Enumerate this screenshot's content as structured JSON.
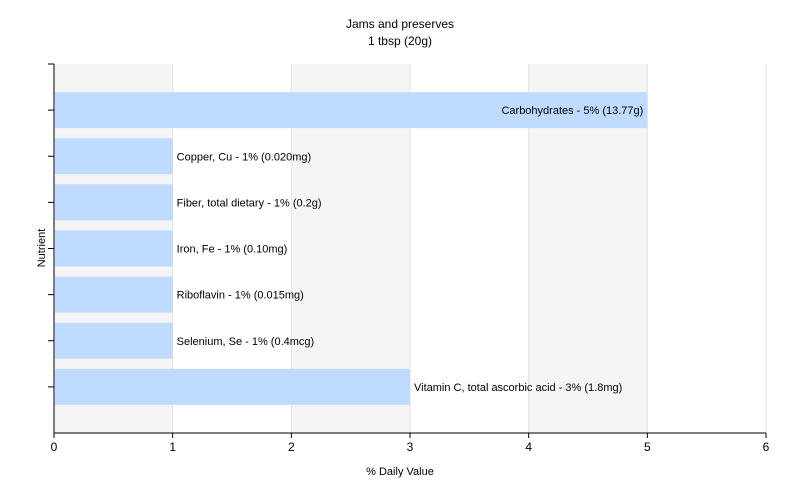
{
  "chart_data": {
    "type": "bar",
    "orientation": "horizontal",
    "title": "Jams and preserves",
    "subtitle": "1 tbsp (20g)",
    "xlabel": "% Daily Value",
    "ylabel": "Nutrient",
    "xlim": [
      0,
      6
    ],
    "x_ticks": [
      0,
      1,
      2,
      3,
      4,
      5,
      6
    ],
    "grid": true,
    "categories": [
      "Carbohydrates",
      "Copper, Cu",
      "Fiber, total dietary",
      "Iron, Fe",
      "Riboflavin",
      "Selenium, Se",
      "Vitamin C, total ascorbic acid"
    ],
    "values": [
      5,
      1,
      1,
      1,
      1,
      1,
      3
    ],
    "labels": [
      "Carbohydrates - 5% (13.77g)",
      "Copper, Cu - 1% (0.020mg)",
      "Fiber, total dietary - 1% (0.2g)",
      "Iron, Fe - 1% (0.10mg)",
      "Riboflavin - 1% (0.015mg)",
      "Selenium, Se - 1% (0.4mcg)",
      "Vitamin C, total ascorbic acid - 3% (1.8mg)"
    ],
    "colors": {
      "bar": "#bfdbff",
      "grid": "#e2e2e2",
      "axis": "#000000",
      "band": "#f5f5f5"
    }
  }
}
